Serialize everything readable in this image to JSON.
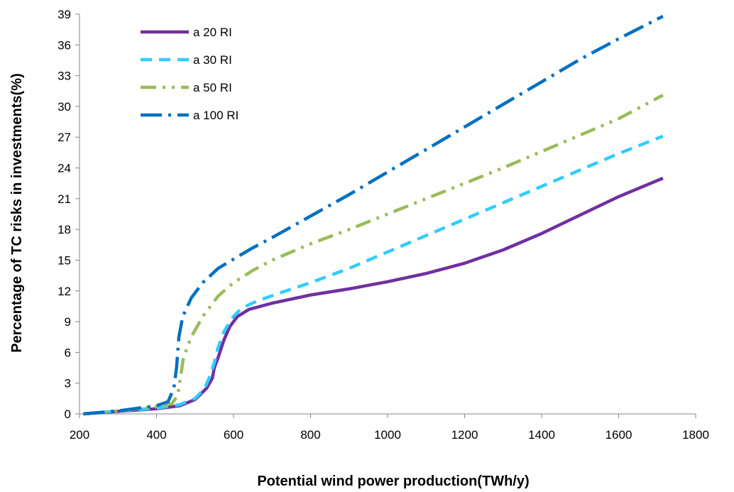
{
  "chart_data": {
    "type": "line",
    "xlabel": "Potential wind power production(TWh/y)",
    "ylabel": "Percentage of TC risks in investments(%)",
    "xlim": [
      200,
      1800
    ],
    "ylim": [
      0,
      39
    ],
    "x_ticks": [
      200,
      400,
      600,
      800,
      1000,
      1200,
      1400,
      1600,
      1800
    ],
    "y_ticks": [
      0,
      3,
      6,
      9,
      12,
      15,
      18,
      21,
      24,
      27,
      30,
      33,
      36,
      39
    ],
    "grid": false,
    "legend_position": "top-left",
    "series": [
      {
        "name": "a 20 RI",
        "color": "#7030a0",
        "style": "solid",
        "points": [
          [
            210,
            0
          ],
          [
            300,
            0.25
          ],
          [
            400,
            0.5
          ],
          [
            460,
            0.8
          ],
          [
            500,
            1.4
          ],
          [
            530,
            2.5
          ],
          [
            545,
            3.5
          ],
          [
            550,
            4.5
          ],
          [
            560,
            5.5
          ],
          [
            575,
            7.2
          ],
          [
            590,
            8.5
          ],
          [
            610,
            9.5
          ],
          [
            640,
            10.2
          ],
          [
            700,
            10.8
          ],
          [
            800,
            11.6
          ],
          [
            900,
            12.2
          ],
          [
            1000,
            12.9
          ],
          [
            1100,
            13.7
          ],
          [
            1200,
            14.7
          ],
          [
            1300,
            16.0
          ],
          [
            1400,
            17.6
          ],
          [
            1500,
            19.4
          ],
          [
            1600,
            21.2
          ],
          [
            1715,
            23.0
          ]
        ]
      },
      {
        "name": "a 30 RI",
        "color": "#33ccff",
        "style": "dash",
        "points": [
          [
            210,
            0
          ],
          [
            300,
            0.3
          ],
          [
            400,
            0.55
          ],
          [
            460,
            0.9
          ],
          [
            500,
            1.5
          ],
          [
            525,
            2.5
          ],
          [
            540,
            3.8
          ],
          [
            550,
            5.0
          ],
          [
            560,
            6.5
          ],
          [
            575,
            8.0
          ],
          [
            595,
            9.3
          ],
          [
            620,
            10.3
          ],
          [
            660,
            11.0
          ],
          [
            720,
            11.8
          ],
          [
            800,
            12.8
          ],
          [
            900,
            14.2
          ],
          [
            1000,
            15.8
          ],
          [
            1100,
            17.4
          ],
          [
            1200,
            19.0
          ],
          [
            1300,
            20.6
          ],
          [
            1400,
            22.2
          ],
          [
            1500,
            23.8
          ],
          [
            1600,
            25.4
          ],
          [
            1715,
            27.1
          ]
        ]
      },
      {
        "name": "a 50 RI",
        "color": "#9bbb59",
        "style": "dash-dot-dot",
        "points": [
          [
            210,
            0
          ],
          [
            300,
            0.3
          ],
          [
            400,
            0.7
          ],
          [
            440,
            1.0
          ],
          [
            455,
            1.8
          ],
          [
            462,
            3.5
          ],
          [
            470,
            5.5
          ],
          [
            490,
            7.5
          ],
          [
            520,
            9.5
          ],
          [
            560,
            11.5
          ],
          [
            600,
            12.8
          ],
          [
            650,
            14.0
          ],
          [
            700,
            15.0
          ],
          [
            800,
            16.6
          ],
          [
            900,
            18.0
          ],
          [
            1000,
            19.5
          ],
          [
            1100,
            21.0
          ],
          [
            1200,
            22.5
          ],
          [
            1300,
            24.0
          ],
          [
            1400,
            25.6
          ],
          [
            1500,
            27.2
          ],
          [
            1600,
            28.8
          ],
          [
            1715,
            31.1
          ]
        ]
      },
      {
        "name": "a 100 RI",
        "color": "#0070c0",
        "style": "long-dash-dot",
        "points": [
          [
            210,
            0
          ],
          [
            300,
            0.3
          ],
          [
            400,
            0.8
          ],
          [
            430,
            1.2
          ],
          [
            445,
            2.5
          ],
          [
            452,
            4.5
          ],
          [
            458,
            7.5
          ],
          [
            468,
            9.5
          ],
          [
            490,
            11.3
          ],
          [
            520,
            12.8
          ],
          [
            560,
            14.2
          ],
          [
            600,
            15.1
          ],
          [
            650,
            16.2
          ],
          [
            700,
            17.2
          ],
          [
            800,
            19.3
          ],
          [
            900,
            21.4
          ],
          [
            1000,
            23.6
          ],
          [
            1100,
            25.8
          ],
          [
            1200,
            28.0
          ],
          [
            1300,
            30.2
          ],
          [
            1400,
            32.4
          ],
          [
            1500,
            34.6
          ],
          [
            1600,
            36.6
          ],
          [
            1715,
            38.8
          ]
        ]
      }
    ]
  }
}
